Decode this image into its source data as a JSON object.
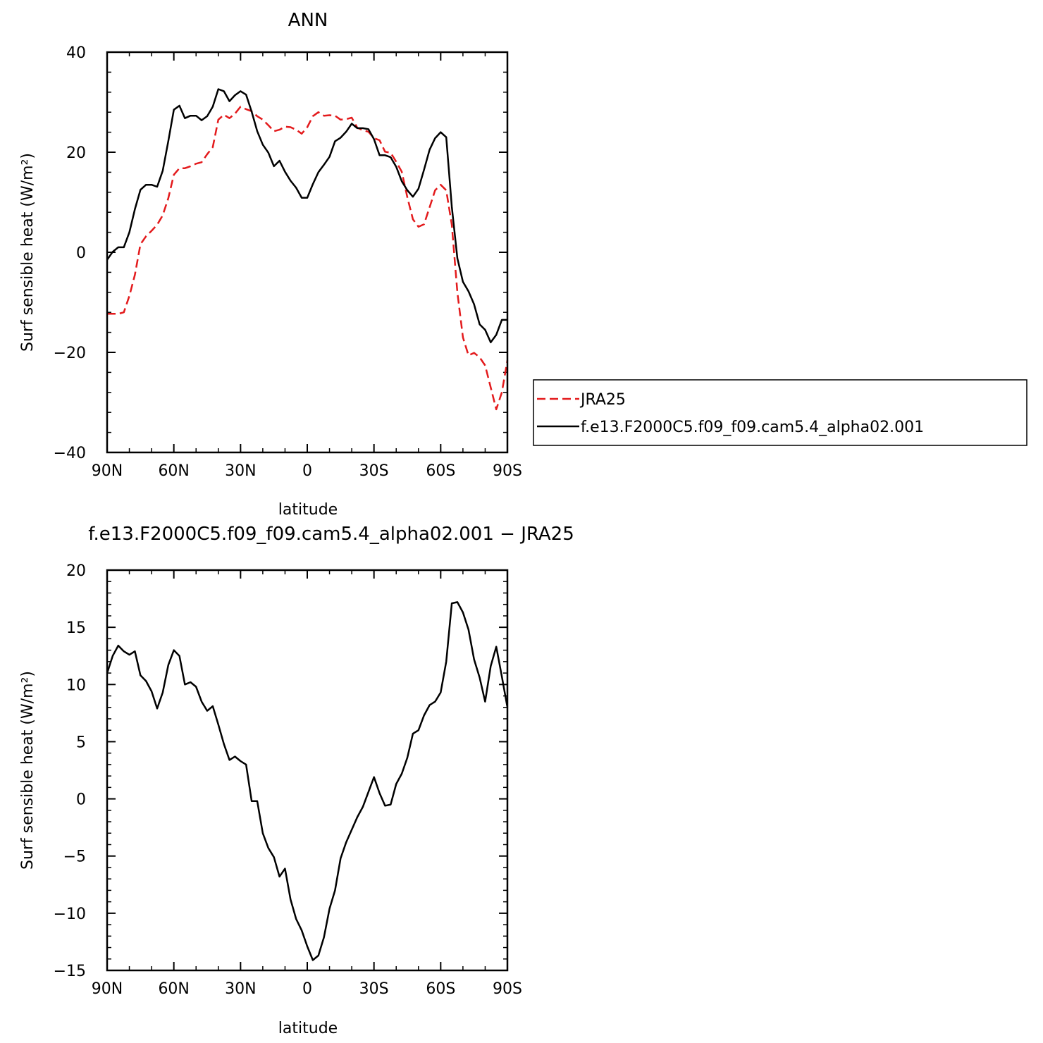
{
  "chart_data": [
    {
      "type": "line",
      "title": "ANN",
      "xlabel": "latitude",
      "ylabel": "Surf sensible heat (W/m²)",
      "xlim": [
        90,
        -90
      ],
      "ylim": [
        -40,
        40
      ],
      "xticks": [
        90,
        60,
        30,
        0,
        -30,
        -60,
        -90
      ],
      "xtick_labels": [
        "90N",
        "60N",
        "30N",
        "0",
        "30S",
        "60S",
        "90S"
      ],
      "yticks": [
        -40,
        -20,
        0,
        20,
        40
      ],
      "ytick_labels": [
        "−40",
        "−20",
        "0",
        "20",
        "40"
      ],
      "legend_position": "right",
      "series": [
        {
          "name": "JRA25",
          "color": "#e31a1c",
          "style": "dashed",
          "x": [
            90,
            87.5,
            85,
            82.5,
            80,
            77.5,
            75,
            72.5,
            70,
            67.5,
            65,
            62.5,
            60,
            57.5,
            55,
            52.5,
            50,
            47.5,
            45,
            42.5,
            40,
            37.5,
            35,
            32.5,
            30,
            27.5,
            25,
            22.5,
            20,
            17.5,
            15,
            12.5,
            10,
            7.5,
            5,
            2.5,
            0,
            -2.5,
            -5,
            -7.5,
            -10,
            -12.5,
            -15,
            -17.5,
            -20,
            -22.5,
            -25,
            -27.5,
            -30,
            -32.5,
            -35,
            -37.5,
            -40,
            -42.5,
            -45,
            -47.5,
            -50,
            -52.5,
            -55,
            -57.5,
            -60,
            -62.5,
            -65,
            -67.5,
            -70,
            -72.5,
            -75,
            -77.5,
            -80,
            -82.5,
            -85,
            -87.5,
            -90
          ],
          "y": [
            -12.3,
            -12.3,
            -12.3,
            -12.0,
            -8.7,
            -4.5,
            1.6,
            3.2,
            4.3,
            5.5,
            7.4,
            10.8,
            15.5,
            16.8,
            16.8,
            17.2,
            17.7,
            18.0,
            19.6,
            21.0,
            26.5,
            27.5,
            26.8,
            27.7,
            29.1,
            28.6,
            28.2,
            27.2,
            26.5,
            25.4,
            24.2,
            24.5,
            25.1,
            25.0,
            24.5,
            23.7,
            25.0,
            27.2,
            28.0,
            27.3,
            27.4,
            27.3,
            26.5,
            26.6,
            26.9,
            24.9,
            24.4,
            24.1,
            22.8,
            22.4,
            20.1,
            19.9,
            18.1,
            16.1,
            11.0,
            6.6,
            5.1,
            5.6,
            9.0,
            12.4,
            13.5,
            12.4,
            5.5,
            -8.0,
            -17.0,
            -20.6,
            -20.1,
            -21.0,
            -22.6,
            -27.0,
            -31.4,
            -28.0,
            -21.6
          ]
        },
        {
          "name": "f.e13.F2000C5.f09_f09.cam5.4_alpha02.001",
          "color": "#000000",
          "style": "solid",
          "x": [
            90,
            87.5,
            85,
            82.5,
            80,
            77.5,
            75,
            72.5,
            70,
            67.5,
            65,
            62.5,
            60,
            57.5,
            55,
            52.5,
            50,
            47.5,
            45,
            42.5,
            40,
            37.5,
            35,
            32.5,
            30,
            27.5,
            25,
            22.5,
            20,
            17.5,
            15,
            12.5,
            10,
            7.5,
            5,
            2.5,
            0,
            -2.5,
            -5,
            -7.5,
            -10,
            -12.5,
            -15,
            -17.5,
            -20,
            -22.5,
            -25,
            -27.5,
            -30,
            -32.5,
            -35,
            -37.5,
            -40,
            -42.5,
            -45,
            -47.5,
            -50,
            -52.5,
            -55,
            -57.5,
            -60,
            -62.5,
            -65,
            -67.5,
            -70,
            -72.5,
            -75,
            -77.5,
            -80,
            -82.5,
            -85,
            -87.5,
            -90
          ],
          "y": [
            -1.5,
            0.1,
            1.0,
            1.0,
            4.0,
            8.6,
            12.5,
            13.5,
            13.5,
            13.1,
            16.3,
            22.2,
            28.5,
            29.3,
            26.8,
            27.3,
            27.3,
            26.4,
            27.2,
            29.1,
            32.6,
            32.2,
            30.2,
            31.4,
            32.2,
            31.5,
            28.1,
            24.2,
            21.5,
            19.9,
            17.2,
            18.3,
            16.1,
            14.3,
            12.9,
            10.9,
            10.9,
            13.6,
            16.0,
            17.5,
            19.1,
            22.2,
            22.9,
            24.1,
            25.7,
            24.8,
            24.8,
            24.6,
            22.6,
            19.4,
            19.4,
            19.0,
            17.1,
            14.2,
            12.4,
            11.1,
            12.7,
            16.5,
            20.5,
            22.8,
            24.0,
            23.0,
            9.1,
            -1.2,
            -5.9,
            -7.8,
            -10.4,
            -14.4,
            -15.5,
            -18.0,
            -16.5,
            -13.5,
            -13.5
          ]
        }
      ]
    },
    {
      "type": "line",
      "title": "f.e13.F2000C5.f09_f09.cam5.4_alpha02.001 − JRA25",
      "xlabel": "latitude",
      "ylabel": "Surf sensible heat (W/m²)",
      "xlim": [
        90,
        -90
      ],
      "ylim": [
        -15,
        20
      ],
      "xticks": [
        90,
        60,
        30,
        0,
        -30,
        -60,
        -90
      ],
      "xtick_labels": [
        "90N",
        "60N",
        "30N",
        "0",
        "30S",
        "60S",
        "90S"
      ],
      "yticks": [
        -15,
        -10,
        -5,
        0,
        5,
        10,
        15,
        20
      ],
      "ytick_labels": [
        "−15",
        "−10",
        "−5",
        "0",
        "5",
        "10",
        "15",
        "20"
      ],
      "series": [
        {
          "color": "#000000",
          "style": "solid",
          "x": [
            90,
            87.5,
            85,
            82.5,
            80,
            77.5,
            75,
            72.5,
            70,
            67.5,
            65,
            62.5,
            60,
            57.5,
            55,
            52.5,
            50,
            47.5,
            45,
            42.5,
            40,
            37.5,
            35,
            32.5,
            30,
            27.5,
            25,
            22.5,
            20,
            17.5,
            15,
            12.5,
            10,
            7.5,
            5,
            2.5,
            0,
            -2.5,
            -5,
            -7.5,
            -10,
            -12.5,
            -15,
            -17.5,
            -20,
            -22.5,
            -25,
            -27.5,
            -30,
            -32.5,
            -35,
            -37.5,
            -40,
            -42.5,
            -45,
            -47.5,
            -50,
            -52.5,
            -55,
            -57.5,
            -60,
            -62.5,
            -65,
            -67.5,
            -70,
            -72.5,
            -75,
            -77.5,
            -80,
            -82.5,
            -85,
            -87.5,
            -90
          ],
          "y": [
            11.0,
            12.5,
            13.4,
            12.9,
            12.6,
            12.9,
            10.8,
            10.3,
            9.4,
            7.9,
            9.3,
            11.7,
            13.0,
            12.5,
            10.0,
            10.2,
            9.8,
            8.5,
            7.7,
            8.1,
            6.5,
            4.8,
            3.4,
            3.7,
            3.3,
            3.0,
            -0.2,
            -0.2,
            -3.0,
            -4.3,
            -5.1,
            -6.8,
            -6.1,
            -8.8,
            -10.5,
            -11.5,
            -12.9,
            -14.1,
            -13.7,
            -12.1,
            -9.6,
            -8.0,
            -5.2,
            -3.8,
            -2.7,
            -1.6,
            -0.7,
            0.6,
            1.9,
            0.5,
            -0.6,
            -0.5,
            1.3,
            2.2,
            3.6,
            5.7,
            6.0,
            7.3,
            8.2,
            8.5,
            9.3,
            12.0,
            17.1,
            17.2,
            16.3,
            14.8,
            12.2,
            10.6,
            8.5,
            11.6,
            13.3,
            10.7,
            8.0
          ]
        }
      ]
    }
  ]
}
